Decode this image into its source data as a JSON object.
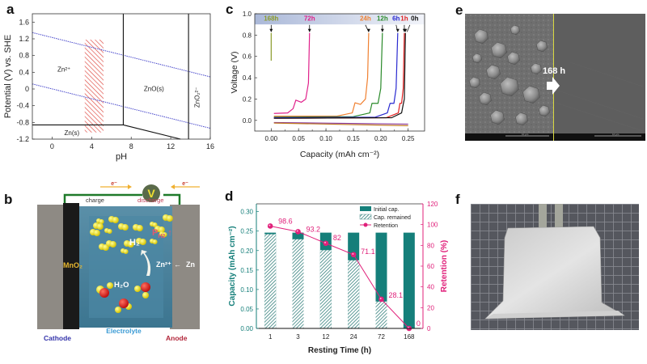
{
  "panels": {
    "a": {
      "label": "a",
      "chart_data": {
        "type": "line",
        "title": "",
        "xlabel": "pH",
        "ylabel": "Potential (V) vs. SHE",
        "xlim": [
          -2,
          16
        ],
        "ylim": [
          -1.2,
          1.8
        ],
        "xticks": [
          "0",
          "4",
          "8",
          "12",
          "16"
        ],
        "yticks": [
          "1.6",
          "1.2",
          "0.8",
          "0.4",
          "0",
          "-0.4",
          "-0.8",
          "-1.2"
        ],
        "regions": [
          {
            "label": "Zn²⁺",
            "x": 1.2,
            "y": 0.42
          },
          {
            "label": "ZnO(s)",
            "x": 10.3,
            "y": -0.05
          },
          {
            "label": "Zn(s)",
            "x": 2.0,
            "y": -1.1
          },
          {
            "label": "ZnO₂²⁻",
            "x": 14.9,
            "y": -0.2
          }
        ],
        "series": [
          {
            "name": "O2/H2O",
            "style": "dotted",
            "color": "#4a4acc",
            "points": [
              [
                -2,
                1.35
              ],
              [
                16,
                0.29
              ]
            ]
          },
          {
            "name": "H+/H2",
            "style": "dotted",
            "color": "#4a4acc",
            "points": [
              [
                -2,
                0.12
              ],
              [
                16,
                -0.94
              ]
            ]
          },
          {
            "name": "Zn/Zn2+",
            "style": "solid",
            "color": "#111111",
            "points": [
              [
                -2,
                -0.86
              ],
              [
                7.2,
                -0.86
              ]
            ]
          },
          {
            "name": "Zn/ZnO",
            "style": "solid",
            "color": "#111111",
            "points": [
              [
                7.2,
                -0.86
              ],
              [
                13,
                -1.2
              ]
            ]
          },
          {
            "name": "Zn2+/ZnO",
            "style": "solid",
            "color": "#111111",
            "points": [
              [
                7.2,
                -0.86
              ],
              [
                7.2,
                1.8
              ]
            ]
          },
          {
            "name": "ZnO/ZnO2",
            "style": "solid",
            "color": "#111111",
            "points": [
              [
                13.8,
                -1.2
              ],
              [
                13.8,
                1.8
              ]
            ]
          }
        ],
        "highlight": {
          "name": "operating-window",
          "x": [
            3.3,
            5.2
          ],
          "y": [
            -1.04,
            1.18
          ],
          "color": "#e0524a"
        }
      }
    },
    "b": {
      "label": "b",
      "texts": {
        "electron_left": "e⁻",
        "electron_right": "e⁻",
        "voltmeter": "V",
        "charge": "charge",
        "discharge": "discharge",
        "mno2": "MnO₂",
        "h2": "H₂",
        "ph2": "P",
        "ph2_sub": "H2",
        "ph2_arrow": "↑",
        "zn2": "Zn²⁺",
        "zn_arrow": "←",
        "zn": "Zn",
        "h2o": "H₂O",
        "electrolyte": "Electrolyte",
        "cathode": "Cathode",
        "anode": "Anode"
      },
      "colors": {
        "cathode": "#3333aa",
        "anode": "#b2263a",
        "electrolyte": "#3a9ad4",
        "mno2": "#e8b830",
        "ph2": "#e05a70"
      }
    },
    "c": {
      "label": "c",
      "chart_data": {
        "type": "line",
        "xlabel": "Capacity (mAh cm⁻²)",
        "ylabel": "Voltage (V)",
        "xlim": [
          -0.03,
          0.28
        ],
        "ylim": [
          -0.1,
          1.0
        ],
        "xticks": [
          "0.00",
          "0.05",
          "0.10",
          "0.15",
          "0.20",
          "0.25"
        ],
        "yticks": [
          "0.0",
          "0.2",
          "0.4",
          "0.6",
          "0.8",
          "1.0"
        ],
        "annotations": [
          "168h",
          "72h",
          "24h",
          "12h",
          "6h",
          "1h",
          "0h"
        ],
        "series": [
          {
            "name": "168h",
            "color": "#8a9a2a",
            "points": [
              [
                0.0,
                0.56
              ],
              [
                0.0,
                0.82
              ]
            ]
          },
          {
            "name": "72h",
            "color": "#e0208a",
            "points": [
              [
                0.005,
                0.065
              ],
              [
                0.03,
                0.07
              ],
              [
                0.04,
                0.11
              ],
              [
                0.045,
                0.19
              ],
              [
                0.055,
                0.17
              ],
              [
                0.063,
                0.2
              ],
              [
                0.068,
                0.35
              ],
              [
                0.07,
                0.82
              ]
            ]
          },
          {
            "name": "24h",
            "color": "#f08030",
            "points": [
              [
                0.005,
                0.04
              ],
              [
                0.12,
                0.04
              ],
              [
                0.148,
                0.07
              ],
              [
                0.153,
                0.165
              ],
              [
                0.163,
                0.15
              ],
              [
                0.172,
                0.2
              ],
              [
                0.176,
                0.4
              ],
              [
                0.178,
                0.82
              ]
            ]
          },
          {
            "name": "12h",
            "color": "#2a8a2a",
            "points": [
              [
                0.005,
                0.03
              ],
              [
                0.15,
                0.035
              ],
              [
                0.18,
                0.07
              ],
              [
                0.184,
                0.16
              ],
              [
                0.195,
                0.16
              ],
              [
                0.2,
                0.3
              ],
              [
                0.203,
                0.82
              ]
            ]
          },
          {
            "name": "6h",
            "color": "#2a2ad0",
            "points": [
              [
                0.005,
                0.025
              ],
              [
                0.19,
                0.03
              ],
              [
                0.212,
                0.07
              ],
              [
                0.217,
                0.16
              ],
              [
                0.224,
                0.16
              ],
              [
                0.228,
                0.3
              ],
              [
                0.231,
                0.82
              ]
            ]
          },
          {
            "name": "1h",
            "color": "#e02020",
            "points": [
              [
                0.005,
                0.02
              ],
              [
                0.21,
                0.025
              ],
              [
                0.232,
                0.07
              ],
              [
                0.235,
                0.16
              ],
              [
                0.238,
                0.16
              ],
              [
                0.241,
                0.3
              ],
              [
                0.243,
                0.82
              ]
            ]
          },
          {
            "name": "0h",
            "color": "#111111",
            "points": [
              [
                0.005,
                0.02
              ],
              [
                0.22,
                0.025
              ],
              [
                0.238,
                0.07
              ],
              [
                0.241,
                0.15
              ],
              [
                0.243,
                0.2
              ],
              [
                0.245,
                0.82
              ]
            ]
          },
          {
            "name": "discharge-purple",
            "color": "#8a3aa0",
            "points": [
              [
                0.005,
                -0.02
              ],
              [
                0.25,
                -0.035
              ]
            ]
          },
          {
            "name": "discharge-orange",
            "color": "#c07a20",
            "points": [
              [
                0.005,
                -0.025
              ],
              [
                0.25,
                -0.05
              ]
            ]
          }
        ]
      }
    },
    "d": {
      "label": "d",
      "chart_data": {
        "type": "bar",
        "xlabel": "Resting Time (h)",
        "ylabel": "Capacity (mAh cm⁻²)",
        "ylabel_right": "Retention (%)",
        "categories": [
          "1",
          "3",
          "12",
          "24",
          "72",
          "168"
        ],
        "ylim": [
          0,
          0.32
        ],
        "ylim_right": [
          0,
          120
        ],
        "yticks": [
          "0.00",
          "0.05",
          "0.10",
          "0.15",
          "0.20",
          "0.25",
          "0.30"
        ],
        "yticks_right": [
          "0",
          "20",
          "40",
          "60",
          "80",
          "100",
          "120"
        ],
        "legend": [
          "Initial cap.",
          "Cap. remained",
          "Retention"
        ],
        "legend_position": "top-right",
        "series": [
          {
            "name": "Initial cap.",
            "color": "#157f7a",
            "values": [
              0.246,
              0.246,
              0.246,
              0.246,
              0.246,
              0.246
            ]
          },
          {
            "name": "Cap. remained",
            "color": "#2a8a86",
            "values": [
              0.242,
              0.229,
              0.201,
              0.175,
              0.069,
              0.0
            ]
          },
          {
            "name": "Retention",
            "color": "#e0207a",
            "axis": "right",
            "values": [
              98.6,
              93.2,
              82,
              71.1,
              28.1,
              0
            ]
          }
        ],
        "data_labels": [
          "98.6",
          "93.2",
          "82",
          "71.1",
          "28.1",
          "0"
        ]
      }
    },
    "e": {
      "label": "e",
      "annotation": "168 h",
      "scale_bar_left": "10 µm",
      "scale_bar_right": "10 µm"
    },
    "f": {
      "label": "f"
    }
  }
}
